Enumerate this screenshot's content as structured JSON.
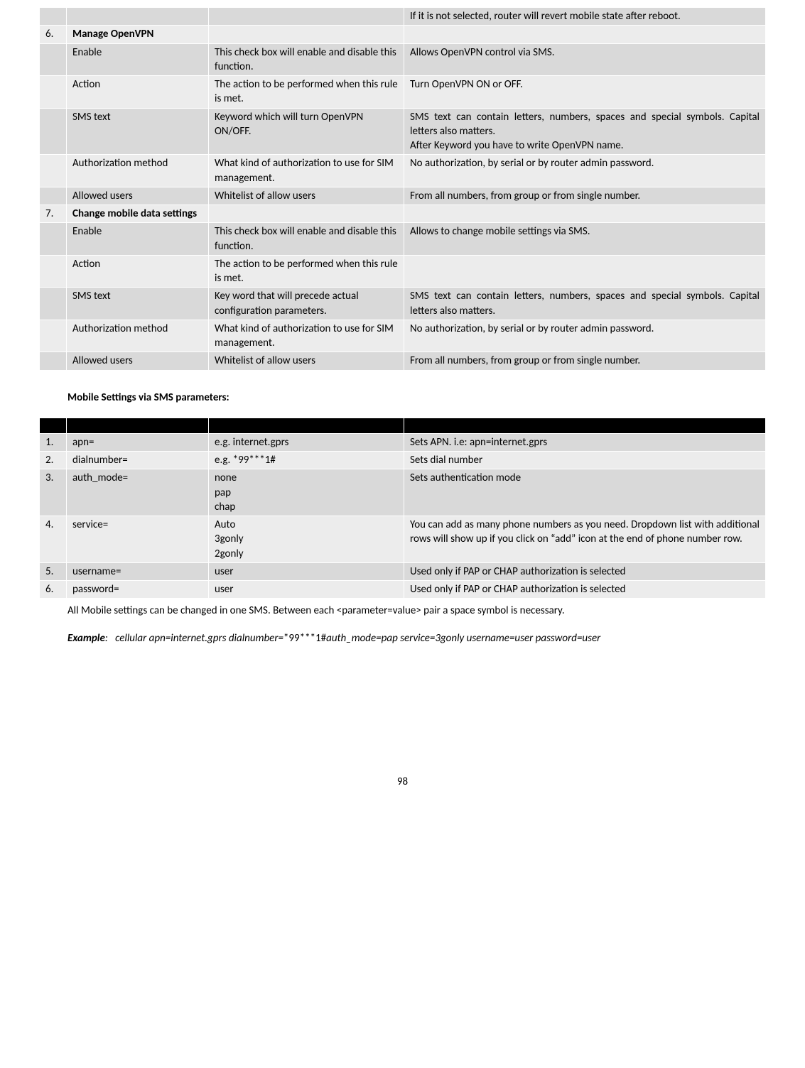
{
  "table1": {
    "rows": [
      {
        "shade": "a",
        "num": "",
        "name": "",
        "desc": "",
        "notes": "If it is not selected, router will revert mobile state after reboot.",
        "bold": false,
        "justify": true
      },
      {
        "shade": "b",
        "num": "6.",
        "name": "Manage OpenVPN",
        "desc": "",
        "notes": "",
        "bold": true,
        "justify": false
      },
      {
        "shade": "a",
        "num": "",
        "name": "Enable",
        "desc": "This check box will enable and disable this function.",
        "notes": "Allows OpenVPN control via SMS.",
        "bold": false,
        "justify": false
      },
      {
        "shade": "b",
        "num": "",
        "name": "Action",
        "desc": "The action to be performed when this rule is met.",
        "notes": "Turn OpenVPN ON or OFF.",
        "bold": false,
        "justify": false
      },
      {
        "shade": "a",
        "num": "",
        "name": "SMS text",
        "desc": "Keyword which will turn OpenVPN ON/OFF.",
        "notes": "SMS text can contain letters, numbers, spaces and special symbols. Capital letters also matters.\nAfter Keyword you have to write OpenVPN name.",
        "bold": false,
        "justify": true
      },
      {
        "shade": "b",
        "num": "",
        "name": "Authorization method",
        "desc": "What kind of authorization to use for SIM management.",
        "notes": "No authorization, by serial or by router admin password.",
        "bold": false,
        "justify": true
      },
      {
        "shade": "a",
        "num": "",
        "name": "Allowed users",
        "desc": "Whitelist of allow users",
        "notes": "From all numbers, from group or from single number.",
        "bold": false,
        "justify": false
      },
      {
        "shade": "b",
        "num": "7.",
        "name": "Change mobile data settings",
        "desc": "",
        "notes": "",
        "bold": true,
        "justify": false
      },
      {
        "shade": "a",
        "num": "",
        "name": "Enable",
        "desc": "This check box will enable and disable this function.",
        "notes": "Allows to change mobile settings via SMS.",
        "bold": false,
        "justify": false
      },
      {
        "shade": "b",
        "num": "",
        "name": "Action",
        "desc": "The action to be performed when this rule is met.",
        "notes": "",
        "bold": false,
        "justify": false
      },
      {
        "shade": "a",
        "num": "",
        "name": "SMS text",
        "desc": "Key word that will precede actual configuration parameters.",
        "notes": "SMS text can contain letters, numbers, spaces and special symbols. Capital letters also matters.",
        "bold": false,
        "justify": true
      },
      {
        "shade": "b",
        "num": "",
        "name": "Authorization method",
        "desc": "What kind of authorization to use for SIM management.",
        "notes": "No authorization, by serial or by router admin password.",
        "bold": false,
        "justify": true
      },
      {
        "shade": "a",
        "num": "",
        "name": "Allowed users",
        "desc": "Whitelist of allow users",
        "notes": "From all numbers, from group or from single number.",
        "bold": false,
        "justify": false
      }
    ]
  },
  "heading2": "Mobile Settings via SMS parameters:",
  "table2": {
    "rows": [
      {
        "shade": "a",
        "num": "1.",
        "name": "apn=",
        "desc": "e.g. internet.gprs",
        "notes": "Sets APN. i.e: apn=internet.gprs",
        "justify": false
      },
      {
        "shade": "b",
        "num": "2.",
        "name": "dialnumber=",
        "desc": "e.g. *99***1#",
        "notes": "Sets dial number",
        "justify": false
      },
      {
        "shade": "a",
        "num": "3.",
        "name": "auth_mode=",
        "desc": "none\npap\nchap",
        "notes": "Sets authentication mode",
        "justify": false
      },
      {
        "shade": "b",
        "num": "4.",
        "name": "service=",
        "desc": "Auto\n3gonly\n2gonly",
        "notes": "You can add as many phone numbers as you need. Dropdown list with additional rows will show up if you click on “add” icon at the end of phone number row.",
        "justify": true
      },
      {
        "shade": "a",
        "num": "5.",
        "name": "username=",
        "desc": "user",
        "notes": "Used only if PAP or CHAP authorization is selected",
        "justify": false
      },
      {
        "shade": "b",
        "num": "6.",
        "name": "password=",
        "desc": "user",
        "notes": "Used only if PAP or CHAP authorization is selected",
        "justify": false
      }
    ]
  },
  "para1": "All Mobile settings can be changed in one SMS. Between each <parameter=value> pair a space symbol is necessary.",
  "example": {
    "label": "Example",
    "colon": ": ",
    "pre": "cellular apn=internet.gprs dialnumber=",
    "mid": "*99***1#",
    "post": "auth_mode=pap service=3gonly username=user password=user"
  },
  "pageNumber": "98"
}
